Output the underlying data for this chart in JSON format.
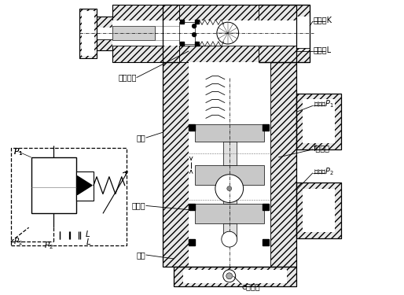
{
  "bg_color": "#ffffff",
  "labels": {
    "waike_k": "外控口K",
    "xieyu_l": "泄油口L",
    "jinyou_p1": "进油口P₁",
    "f_jianyu": "f减压口",
    "chuyou_p2": "出油口P₂",
    "xiandao_xinzhi": "先导阀芯",
    "fatai": "阀体",
    "zhu_xinzhi": "主阀芯",
    "duangai": "端盖",
    "e_zunikong": "e阻尼孔"
  },
  "font_size": 7.0
}
